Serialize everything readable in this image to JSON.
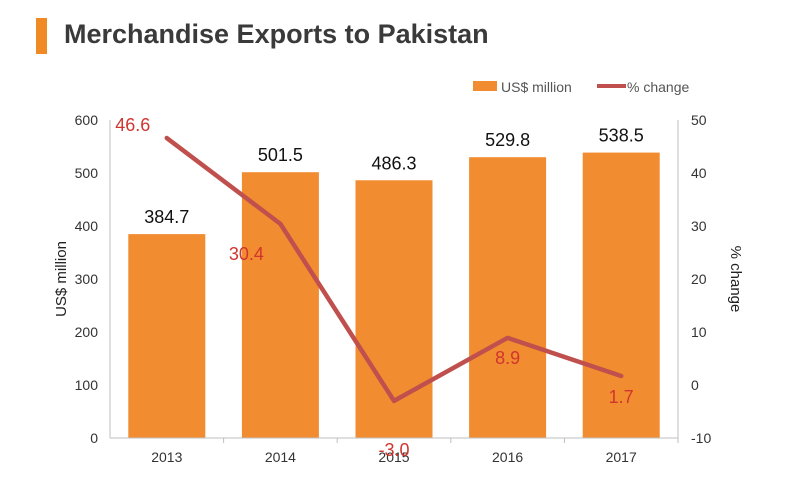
{
  "title": "Merchandise Exports to Pakistan",
  "colors": {
    "accent": "#f08a24",
    "bar": "#f28c30",
    "line": "#c0504d",
    "pct_label": "#d0352f",
    "text": "#3a3a3a"
  },
  "chart_data": {
    "type": "bar",
    "categories": [
      "2013",
      "2014",
      "2015",
      "2016",
      "2017"
    ],
    "series": [
      {
        "name": "US$ million",
        "type": "bar",
        "axis": "left",
        "values": [
          384.7,
          501.5,
          486.3,
          529.8,
          538.5
        ],
        "labels": [
          "384.7",
          "501.5",
          "486.3",
          "529.8",
          "538.5"
        ]
      },
      {
        "name": "% change",
        "type": "line",
        "axis": "right",
        "values": [
          46.6,
          30.4,
          -3.0,
          8.9,
          1.7
        ],
        "labels": [
          "46.6",
          "30.4",
          "-3.0",
          "8.9",
          "1.7"
        ]
      }
    ],
    "ylabel": "US$ million",
    "y2label": "% change",
    "ylim": [
      0,
      600
    ],
    "y2lim": [
      -10,
      50
    ],
    "yticks": [
      "0",
      "100",
      "200",
      "300",
      "400",
      "500",
      "600"
    ],
    "y2ticks": [
      "-10",
      "0",
      "10",
      "20",
      "30",
      "40",
      "50"
    ],
    "grid": false,
    "legend": "top-right"
  }
}
